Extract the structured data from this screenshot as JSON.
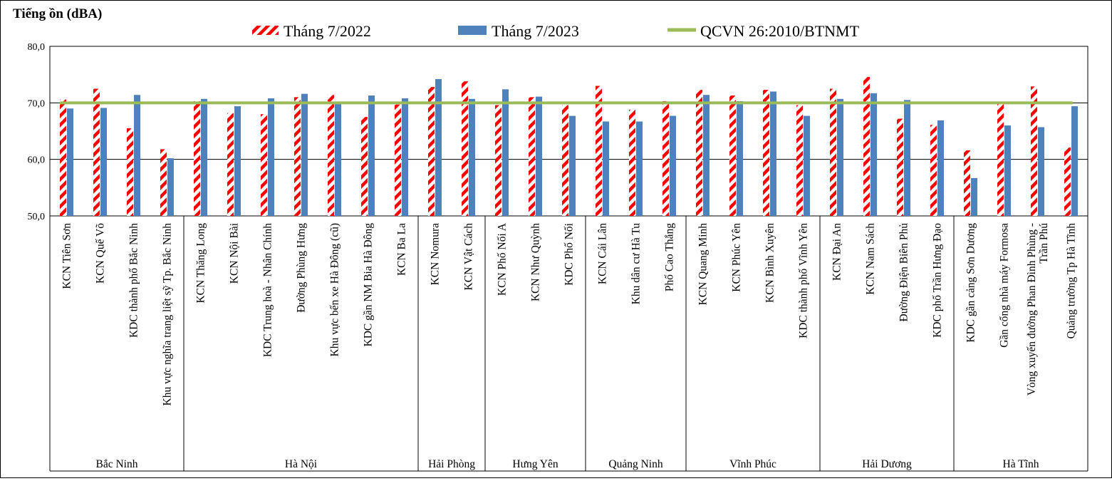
{
  "chart_data": {
    "type": "bar",
    "ylabel": "Tiếng ồn (dBA)",
    "ylim": [
      50,
      80
    ],
    "yticks": [
      "50,0",
      "60,0",
      "70,0",
      "80,0"
    ],
    "ytick_values": [
      50,
      60,
      70,
      80
    ],
    "grid": true,
    "legend_position": "top",
    "reference_line": {
      "name": "QCVN 26:2010/BTNMT",
      "value": 70,
      "color": "#9BBB59"
    },
    "categories": [
      "KCN Tiên Sơn",
      "KCN Quế Võ",
      "KDC thành phố Bắc Ninh",
      "Khu vực nghĩa trang liệt sỹ Tp. Bắc Ninh",
      "KCN Thăng Long",
      "KCN Nội Bài",
      "KDC Trung hoà - Nhân Chính",
      "Đường Phùng Hưng",
      "Khu vực bến xe Hà Đông (cũ)",
      "KDC gần NM Bia Hà Đông",
      "KCN Ba La",
      "KCN Nomura",
      "KCN Vật Cách",
      "KCN Phố Nối A",
      "KCN Như Quỳnh",
      "KDC Phố Nối",
      "KCN Cái Lân",
      "Khu dân cư  Hà Tu",
      "Phố Cao Thắng",
      "KCN Quang Minh",
      "KCN Phúc Yên",
      "KCN Bình Xuyên",
      "KDC thành phố Vĩnh Yên",
      "KCN Đại An",
      "KCN Nam Sách",
      "Đường Điện Biên Phủ",
      "KDC phố Trần Hưng Đạo",
      "KDC gần cảng Sơn Dương",
      "Gần cổng nhà máy Formosa",
      [
        "Vòng xuyến đường Phan Đình Phùng -",
        "Trần Phú"
      ],
      "Quảng trường Tp Hà Tĩnh"
    ],
    "groups": [
      {
        "name": "Bắc Ninh",
        "count": 4
      },
      {
        "name": "Hà Nội",
        "count": 7
      },
      {
        "name": "Hải Phòng",
        "count": 2
      },
      {
        "name": "Hưng Yên",
        "count": 3
      },
      {
        "name": "Quảng Ninh",
        "count": 3
      },
      {
        "name": "Vĩnh Phúc",
        "count": 4
      },
      {
        "name": "Hải Dương",
        "count": 4
      },
      {
        "name": "Hà Tĩnh",
        "count": 4
      }
    ],
    "series": [
      {
        "name": "Tháng 7/2022",
        "color": "#FF0000",
        "pattern": "diagonal-stripes",
        "values": [
          70.6,
          72.5,
          65.5,
          61.8,
          70.3,
          68.2,
          68.0,
          71.0,
          71.4,
          67.5,
          69.7,
          72.8,
          73.8,
          69.6,
          71.0,
          69.6,
          73.0,
          68.8,
          70.3,
          72.3,
          71.3,
          72.3,
          69.6,
          72.5,
          74.6,
          67.2,
          66.1,
          61.6,
          69.8,
          72.9,
          62.1
        ]
      },
      {
        "name": "Tháng 7/2023",
        "color": "#4F81BD",
        "pattern": "solid",
        "values": [
          69.0,
          69.1,
          71.4,
          60.2,
          70.7,
          69.4,
          70.8,
          71.6,
          69.9,
          71.3,
          70.8,
          74.2,
          70.7,
          72.4,
          71.1,
          67.7,
          66.7,
          66.7,
          67.7,
          71.4,
          70.3,
          72.0,
          67.7,
          70.7,
          71.7,
          70.5,
          66.9,
          56.7,
          66.0,
          65.7,
          69.4
        ]
      }
    ]
  }
}
